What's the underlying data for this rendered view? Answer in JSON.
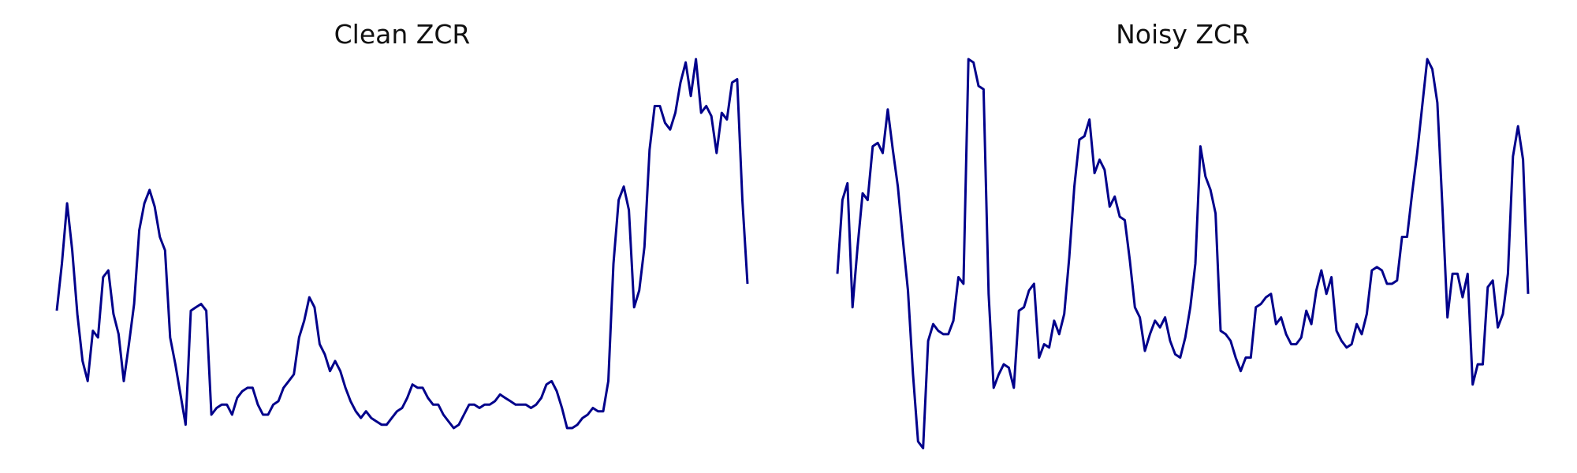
{
  "colors": {
    "line": "#00008b",
    "background": "#ffffff",
    "title": "#111111"
  },
  "chart_data": [
    {
      "type": "line",
      "title": "Clean ZCR",
      "xlabel": "",
      "ylabel": "",
      "axes_visible": false,
      "grid": false,
      "ylim": [
        0,
        110
      ],
      "series": [
        {
          "values": [
            39,
            53,
            71,
            57,
            38,
            24,
            18,
            33,
            31,
            49,
            51,
            38,
            32,
            18,
            29,
            41,
            63,
            71,
            75,
            70,
            61,
            57,
            31,
            23,
            14,
            5,
            39,
            40,
            41,
            39,
            8,
            10,
            11,
            11,
            8,
            13,
            15,
            16,
            16,
            11,
            8,
            8,
            11,
            12,
            16,
            18,
            20,
            31,
            36,
            43,
            40,
            29,
            26,
            21,
            24,
            21,
            16,
            12,
            9,
            7,
            9,
            7,
            6,
            5,
            5,
            7,
            9,
            10,
            13,
            17,
            16,
            16,
            13,
            11,
            11,
            8,
            6,
            4,
            5,
            8,
            11,
            11,
            10,
            11,
            11,
            12,
            14,
            13,
            12,
            11,
            11,
            11,
            10,
            11,
            13,
            17,
            18,
            15,
            10,
            4,
            4,
            5,
            7,
            8,
            10,
            9,
            9,
            18,
            53,
            72,
            76,
            69,
            40,
            45,
            58,
            87,
            100,
            100,
            95,
            93,
            98,
            107,
            113,
            103,
            114,
            98,
            100,
            97,
            86,
            98,
            96,
            107,
            108,
            72,
            47
          ]
        }
      ]
    },
    {
      "type": "line",
      "title": "Noisy ZCR",
      "xlabel": "",
      "ylabel": "",
      "axes_visible": false,
      "grid": false,
      "ylim": [
        0,
        110
      ],
      "series": [
        {
          "values": [
            50,
            72,
            77,
            40,
            58,
            74,
            72,
            88,
            89,
            86,
            99,
            87,
            76,
            60,
            45,
            20,
            0,
            -2,
            30,
            35,
            33,
            32,
            32,
            36,
            49,
            47,
            114,
            113,
            106,
            105,
            44,
            16,
            20,
            23,
            22,
            16,
            39,
            40,
            45,
            47,
            25,
            29,
            28,
            36,
            32,
            38,
            55,
            76,
            90,
            91,
            96,
            80,
            84,
            81,
            70,
            73,
            67,
            66,
            54,
            40,
            37,
            27,
            32,
            36,
            34,
            37,
            30,
            26,
            25,
            31,
            40,
            53,
            88,
            79,
            75,
            68,
            33,
            32,
            30,
            25,
            21,
            25,
            25,
            40,
            41,
            43,
            44,
            35,
            37,
            32,
            29,
            29,
            31,
            39,
            35,
            45,
            51,
            44,
            49,
            33,
            30,
            28,
            29,
            35,
            32,
            38,
            51,
            52,
            51,
            47,
            47,
            48,
            61,
            61,
            74,
            86,
            100,
            114,
            111,
            101,
            70,
            37,
            50,
            50,
            43,
            50,
            17,
            23,
            23,
            46,
            48,
            34,
            38,
            50,
            85,
            94,
            84,
            44
          ]
        }
      ]
    }
  ]
}
